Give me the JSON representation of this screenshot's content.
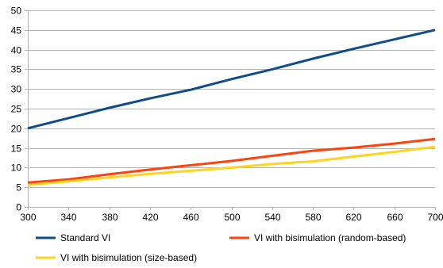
{
  "chart_data": {
    "type": "line",
    "title": "",
    "xlabel": "",
    "ylabel": "",
    "x": [
      300,
      340,
      380,
      420,
      460,
      500,
      540,
      580,
      620,
      660,
      700
    ],
    "x_ticks": [
      "300",
      "340",
      "380",
      "420",
      "460",
      "500",
      "540",
      "580",
      "620",
      "660",
      "700"
    ],
    "xlim": [
      300,
      700
    ],
    "ylim": [
      0,
      50
    ],
    "y_ticks": [
      "0",
      "5",
      "10",
      "15",
      "20",
      "25",
      "30",
      "35",
      "40",
      "45",
      "50"
    ],
    "grid": "horizontal",
    "legend_position": "bottom",
    "series": [
      {
        "name": "Standard VI",
        "color": "#0e4c8c",
        "values": [
          20,
          22.6,
          25.2,
          27.6,
          29.8,
          32.5,
          35.0,
          37.7,
          40.2,
          42.6,
          45.0
        ]
      },
      {
        "name": "VI with bisimulation (random-based)",
        "color": "#ff420e",
        "values": [
          6.2,
          7.0,
          8.3,
          9.5,
          10.6,
          11.7,
          13.0,
          14.3,
          15.1,
          16.1,
          17.3
        ]
      },
      {
        "name": "VI with bisimulation (size-based)",
        "color": "#ffd320",
        "values": [
          5.6,
          6.5,
          7.5,
          8.4,
          9.2,
          10.0,
          10.9,
          11.6,
          12.8,
          14.0,
          15.3
        ]
      }
    ]
  }
}
